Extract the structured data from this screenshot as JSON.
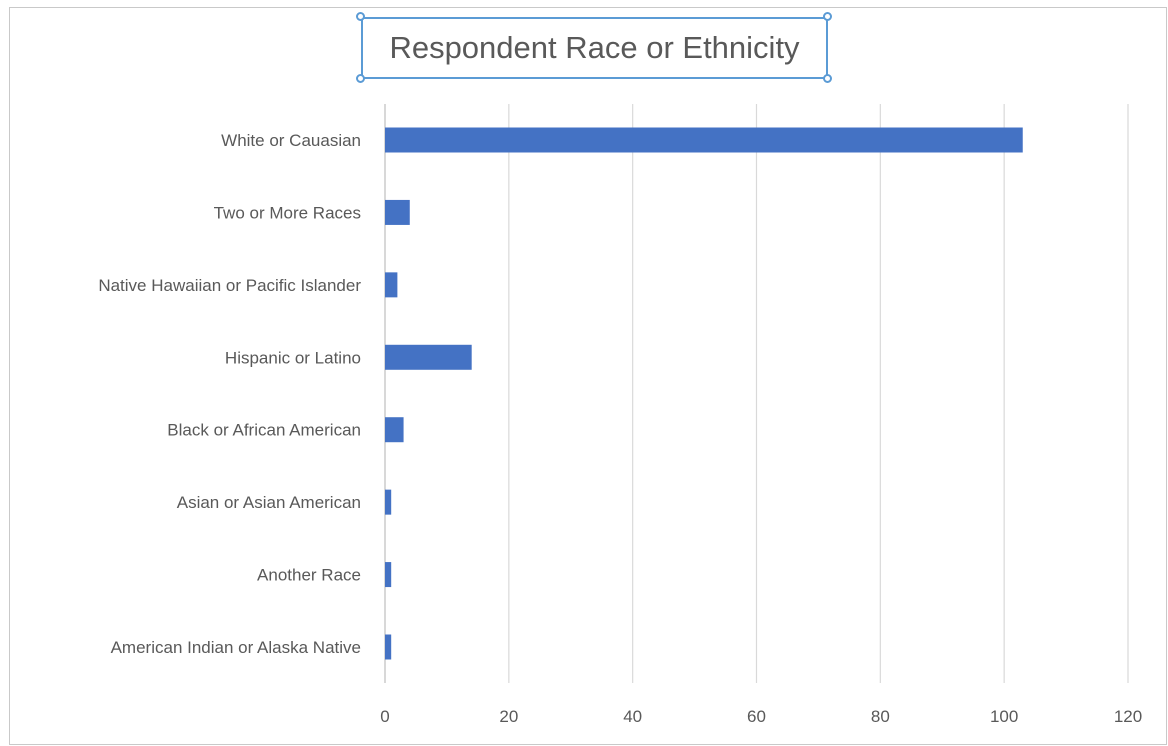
{
  "chart_data": {
    "type": "bar",
    "orientation": "horizontal",
    "title": "Respondent Race or Ethnicity",
    "categories": [
      "White or Cauasian",
      "Two or More Races",
      "Native Hawaiian or Pacific Islander",
      "Hispanic or Latino",
      "Black or African American",
      "Asian or Asian American",
      "Another Race",
      "American Indian or Alaska Native"
    ],
    "values": [
      103,
      4,
      2,
      14,
      3,
      1,
      1,
      1
    ],
    "xlim": [
      0,
      120
    ],
    "xticks": [
      "0",
      "20",
      "40",
      "60",
      "80",
      "100",
      "120"
    ],
    "grid": "vertical",
    "legend": "none",
    "bar_color": "#4472c4",
    "grid_color": "#d9d9d9"
  }
}
